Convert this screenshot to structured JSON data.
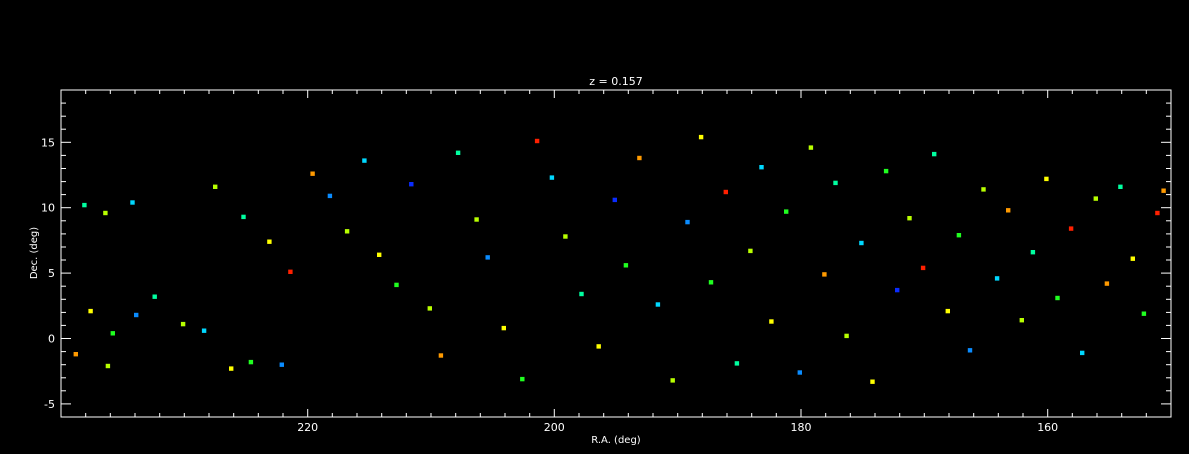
{
  "chart_data": {
    "type": "scatter",
    "title": "z = 0.157",
    "xlabel": "R.A. (deg)",
    "ylabel": "Dec. (deg)",
    "xlim": [
      240,
      150
    ],
    "ylim": [
      -6,
      19
    ],
    "x_reversed": true,
    "xticks": [
      220,
      200,
      180,
      160
    ],
    "xtick_labels": [
      "220",
      "200",
      "180",
      "160"
    ],
    "yticks": [
      -5,
      0,
      5,
      10,
      15
    ],
    "ytick_labels": [
      "-5",
      "0",
      "5",
      "10",
      "15"
    ],
    "background": "#000000",
    "axes_color": "#ffffff",
    "marker": "square",
    "color_scale": "rainbow (purple-blue-cyan-green-yellow-red)",
    "colors": [
      "#3a00b0",
      "#0a2cff",
      "#0a8cff",
      "#00d8ff",
      "#00ffa0",
      "#20ff20",
      "#b8ff00",
      "#ffff00",
      "#ff9a00",
      "#ff2000"
    ],
    "series": [
      {
        "points": [
          [
            238.1,
            10.2,
            4
          ],
          [
            236.4,
            9.6,
            6
          ],
          [
            234.2,
            10.4,
            3
          ],
          [
            237.6,
            2.1,
            7
          ],
          [
            235.8,
            0.4,
            5
          ],
          [
            233.9,
            1.8,
            2
          ],
          [
            238.8,
            -1.2,
            8
          ],
          [
            236.2,
            -2.1,
            6
          ],
          [
            232.4,
            3.2,
            4
          ],
          [
            230.1,
            1.1,
            6
          ],
          [
            228.4,
            0.6,
            3
          ],
          [
            226.2,
            -2.3,
            7
          ],
          [
            224.6,
            -1.8,
            5
          ],
          [
            222.1,
            -2.0,
            2
          ],
          [
            227.5,
            11.6,
            6
          ],
          [
            225.2,
            9.3,
            4
          ],
          [
            223.1,
            7.4,
            7
          ],
          [
            221.4,
            5.1,
            9
          ],
          [
            219.6,
            12.6,
            8
          ],
          [
            218.2,
            10.9,
            2
          ],
          [
            216.8,
            8.2,
            6
          ],
          [
            215.4,
            13.6,
            3
          ],
          [
            214.2,
            6.4,
            7
          ],
          [
            212.8,
            4.1,
            5
          ],
          [
            211.6,
            11.8,
            1
          ],
          [
            210.1,
            2.3,
            6
          ],
          [
            209.2,
            -1.3,
            8
          ],
          [
            207.8,
            14.2,
            4
          ],
          [
            206.3,
            9.1,
            6
          ],
          [
            205.4,
            6.2,
            2
          ],
          [
            204.1,
            0.8,
            7
          ],
          [
            202.6,
            -3.1,
            5
          ],
          [
            201.4,
            15.1,
            9
          ],
          [
            200.2,
            12.3,
            3
          ],
          [
            199.1,
            7.8,
            6
          ],
          [
            197.8,
            3.4,
            4
          ],
          [
            196.4,
            -0.6,
            7
          ],
          [
            195.1,
            10.6,
            1
          ],
          [
            194.2,
            5.6,
            5
          ],
          [
            193.1,
            13.8,
            8
          ],
          [
            191.6,
            2.6,
            3
          ],
          [
            190.4,
            -3.2,
            6
          ],
          [
            189.2,
            8.9,
            2
          ],
          [
            188.1,
            15.4,
            7
          ],
          [
            187.3,
            4.3,
            5
          ],
          [
            186.1,
            11.2,
            9
          ],
          [
            185.2,
            -1.9,
            4
          ],
          [
            184.1,
            6.7,
            6
          ],
          [
            183.2,
            13.1,
            3
          ],
          [
            182.4,
            1.3,
            7
          ],
          [
            181.2,
            9.7,
            5
          ],
          [
            180.1,
            -2.6,
            2
          ],
          [
            179.2,
            14.6,
            6
          ],
          [
            178.1,
            4.9,
            8
          ],
          [
            177.2,
            11.9,
            4
          ],
          [
            176.3,
            0.2,
            6
          ],
          [
            175.1,
            7.3,
            3
          ],
          [
            174.2,
            -3.3,
            7
          ],
          [
            173.1,
            12.8,
            5
          ],
          [
            172.2,
            3.7,
            1
          ],
          [
            171.2,
            9.2,
            6
          ],
          [
            170.1,
            5.4,
            9
          ],
          [
            169.2,
            14.1,
            4
          ],
          [
            168.1,
            2.1,
            7
          ],
          [
            167.2,
            7.9,
            5
          ],
          [
            166.3,
            -0.9,
            2
          ],
          [
            165.2,
            11.4,
            6
          ],
          [
            164.1,
            4.6,
            3
          ],
          [
            163.2,
            9.8,
            8
          ],
          [
            162.1,
            1.4,
            6
          ],
          [
            161.2,
            6.6,
            4
          ],
          [
            160.1,
            12.2,
            7
          ],
          [
            159.2,
            3.1,
            5
          ],
          [
            158.1,
            8.4,
            9
          ],
          [
            157.2,
            -1.1,
            3
          ],
          [
            156.1,
            10.7,
            6
          ],
          [
            155.2,
            4.2,
            8
          ],
          [
            154.1,
            11.6,
            4
          ],
          [
            153.1,
            6.1,
            7
          ],
          [
            152.2,
            1.9,
            5
          ],
          [
            151.1,
            9.6,
            9
          ],
          [
            150.6,
            11.3,
            8
          ]
        ]
      }
    ]
  }
}
